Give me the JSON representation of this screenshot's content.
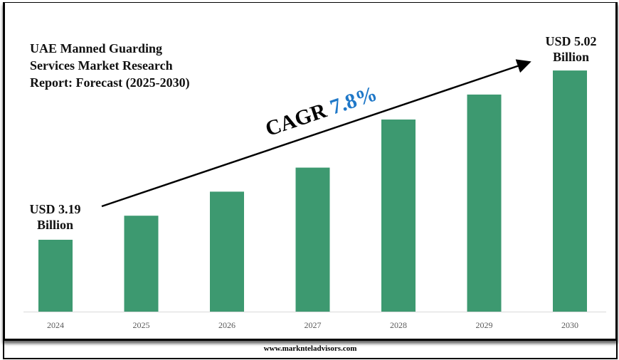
{
  "chart_data": {
    "type": "bar",
    "title": "UAE Manned Guarding Services Market Research Report: Forecast (2025-2030)",
    "title_lines": [
      "UAE Manned Guarding",
      "Services Market Research",
      "Report: Forecast (2025-2030)"
    ],
    "categories": [
      "2024",
      "2025",
      "2026",
      "2027",
      "2028",
      "2029",
      "2030"
    ],
    "values": [
      3.19,
      3.45,
      3.71,
      3.97,
      4.49,
      4.76,
      5.02
    ],
    "unit": "USD Billion",
    "start_label": [
      "USD 3.19",
      "Billion"
    ],
    "end_label": [
      "USD 5.02",
      "Billion"
    ],
    "cagr_label": "CAGR",
    "cagr_value": "7.8%",
    "bar_color": "#3d9970",
    "grid": false,
    "xlabel": "",
    "ylabel": ""
  },
  "footer": "www.marknteladvisors.com"
}
